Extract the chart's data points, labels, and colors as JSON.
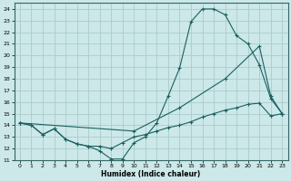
{
  "xlabel": "Humidex (Indice chaleur)",
  "bg_color": "#cce8e8",
  "grid_color": "#aacccc",
  "line_color": "#1a6060",
  "xlim": [
    -0.5,
    23.5
  ],
  "ylim": [
    11,
    24.5
  ],
  "xticks": [
    0,
    1,
    2,
    3,
    4,
    5,
    6,
    7,
    8,
    9,
    10,
    11,
    12,
    13,
    14,
    15,
    16,
    17,
    18,
    19,
    20,
    21,
    22,
    23
  ],
  "yticks": [
    11,
    12,
    13,
    14,
    15,
    16,
    17,
    18,
    19,
    20,
    21,
    22,
    23,
    24
  ],
  "line1_x": [
    0,
    1,
    2,
    3,
    4,
    5,
    6,
    7,
    8,
    9,
    10,
    11,
    12,
    13,
    14,
    15,
    16,
    17,
    18,
    19,
    20,
    21,
    22,
    23
  ],
  "line1_y": [
    14.2,
    14.0,
    13.2,
    13.7,
    12.8,
    12.4,
    12.2,
    11.8,
    11.1,
    11.1,
    12.5,
    13.0,
    14.2,
    16.5,
    18.9,
    22.9,
    24.0,
    24.0,
    23.5,
    21.7,
    21.0,
    19.2,
    16.3,
    15.0
  ],
  "line2_x": [
    0,
    1,
    2,
    3,
    4,
    5,
    6,
    7,
    8,
    9,
    10,
    11,
    12,
    13,
    14,
    15,
    16,
    17,
    18,
    19,
    20,
    21,
    22,
    23
  ],
  "line2_y": [
    14.2,
    14.0,
    13.2,
    13.7,
    12.8,
    12.4,
    12.2,
    12.2,
    12.0,
    12.5,
    13.0,
    13.2,
    13.5,
    13.8,
    14.0,
    14.3,
    14.7,
    15.0,
    15.3,
    15.5,
    15.8,
    15.9,
    14.8,
    15.0
  ],
  "line3_x": [
    0,
    10,
    14,
    18,
    21,
    22,
    23
  ],
  "line3_y": [
    14.2,
    13.5,
    15.5,
    18.0,
    20.8,
    16.5,
    15.0
  ]
}
